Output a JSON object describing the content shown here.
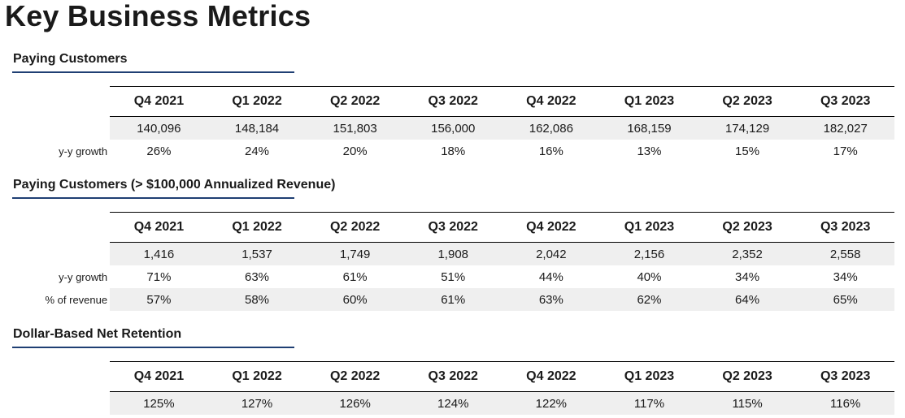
{
  "title": "Key Business Metrics",
  "quarters": [
    "Q4 2021",
    "Q1 2022",
    "Q2 2022",
    "Q3 2022",
    "Q4 2022",
    "Q1 2023",
    "Q2 2023",
    "Q3 2023"
  ],
  "sections": [
    {
      "title": "Paying Customers",
      "rows": [
        {
          "label": "",
          "values": [
            "140,096",
            "148,184",
            "151,803",
            "156,000",
            "162,086",
            "168,159",
            "174,129",
            "182,027"
          ]
        },
        {
          "label": "y-y growth",
          "values": [
            "26%",
            "24%",
            "20%",
            "18%",
            "16%",
            "13%",
            "15%",
            "17%"
          ]
        }
      ]
    },
    {
      "title": "Paying Customers (> $100,000 Annualized Revenue)",
      "rows": [
        {
          "label": "",
          "values": [
            "1,416",
            "1,537",
            "1,749",
            "1,908",
            "2,042",
            "2,156",
            "2,352",
            "2,558"
          ]
        },
        {
          "label": "y-y growth",
          "values": [
            "71%",
            "63%",
            "61%",
            "51%",
            "44%",
            "40%",
            "34%",
            "34%"
          ]
        },
        {
          "label": "% of revenue",
          "values": [
            "57%",
            "58%",
            "60%",
            "61%",
            "63%",
            "62%",
            "64%",
            "65%"
          ]
        }
      ]
    },
    {
      "title": "Dollar-Based Net Retention",
      "rows": [
        {
          "label": "",
          "values": [
            "125%",
            "127%",
            "126%",
            "124%",
            "122%",
            "117%",
            "115%",
            "116%"
          ]
        }
      ]
    }
  ]
}
